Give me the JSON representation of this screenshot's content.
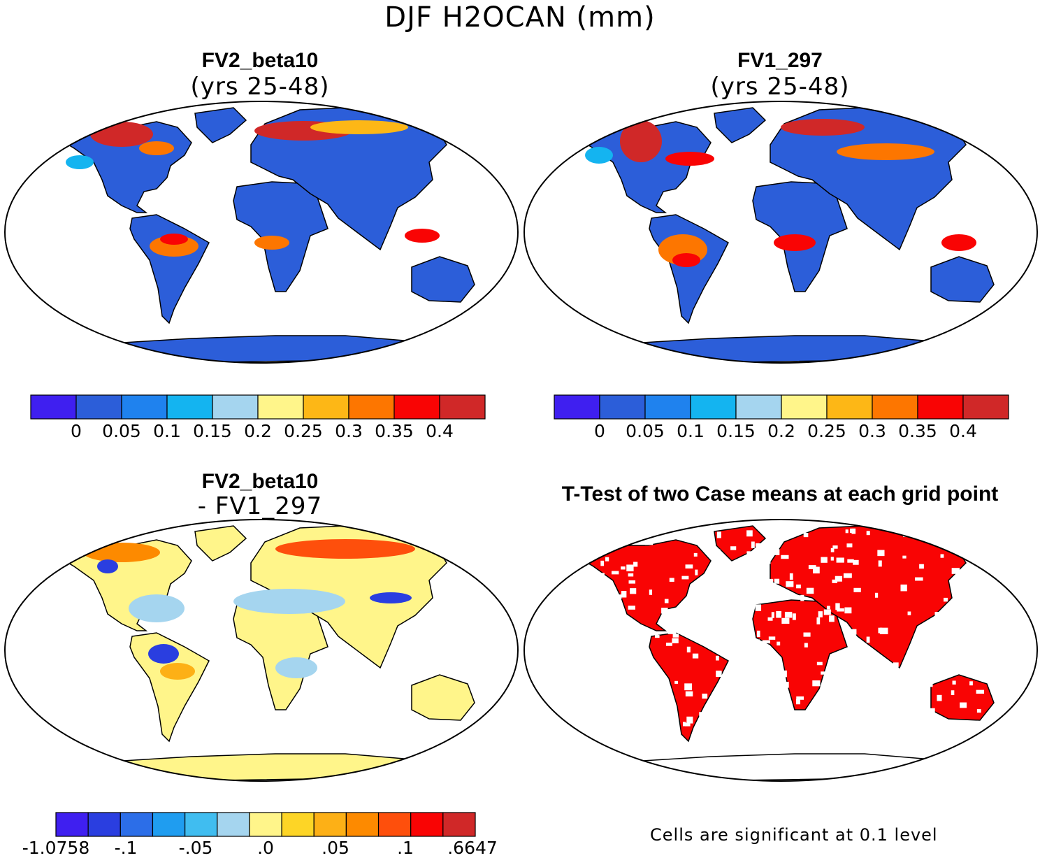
{
  "title": "DJF H2OCAN (mm)",
  "panels": {
    "p1": {
      "title": "FV2_beta10",
      "subtitle": "(yrs 25-48)"
    },
    "p2": {
      "title": "FV1_297",
      "subtitle": "(yrs 25-48)"
    },
    "p3": {
      "title": "FV2_beta10",
      "subtitle": "- FV1_297"
    },
    "p4": {
      "title": "T-Test of two Case means at each grid point",
      "note": "Cells are significant at 0.1 level"
    }
  },
  "chart_data": [
    {
      "type": "heatmap",
      "title": "FV2_beta10 (yrs 25-48)",
      "variable": "DJF H2OCAN (mm)",
      "colorbar": {
        "colors": [
          "#3f1ff0",
          "#2c5ed9",
          "#1f82ee",
          "#14b4f0",
          "#a5d5ef",
          "#fff58a",
          "#fdb716",
          "#fd7600",
          "#f90404",
          "#d02828"
        ],
        "tick_labels": [
          "0",
          "0.05",
          "0.1",
          "0.15",
          "0.2",
          "0.25",
          "0.3",
          "0.35",
          "0.4"
        ]
      }
    },
    {
      "type": "heatmap",
      "title": "FV1_297 (yrs 25-48)",
      "variable": "DJF H2OCAN (mm)",
      "colorbar": {
        "colors": [
          "#3f1ff0",
          "#2c5ed9",
          "#1f82ee",
          "#14b4f0",
          "#a5d5ef",
          "#fff58a",
          "#fdb716",
          "#fd7600",
          "#f90404",
          "#d02828"
        ],
        "tick_labels": [
          "0",
          "0.05",
          "0.1",
          "0.15",
          "0.2",
          "0.25",
          "0.3",
          "0.35",
          "0.4"
        ]
      }
    },
    {
      "type": "heatmap",
      "title": "FV2_beta10 - FV1_297",
      "colorbar": {
        "colors": [
          "#3f1ff0",
          "#2a3ee0",
          "#2c6ee8",
          "#1f9df0",
          "#40bdf0",
          "#a5d5ef",
          "#fff58a",
          "#fdd526",
          "#fdb016",
          "#fd8a00",
          "#fe4f0c",
          "#f90404",
          "#d02828"
        ],
        "tick_labels": [
          "-1.0758",
          "-.1",
          "-.05",
          ".0",
          ".05",
          ".1",
          ".6647"
        ]
      }
    },
    {
      "type": "heatmap",
      "title": "T-Test of two Case means at each grid point",
      "significance_level": 0.1,
      "significant_color": "#f90404"
    }
  ]
}
